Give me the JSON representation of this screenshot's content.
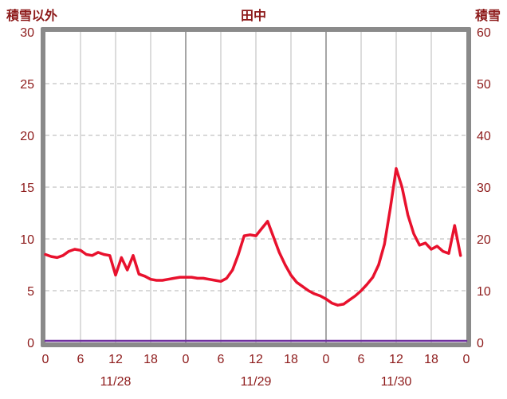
{
  "chart_data": {
    "type": "line",
    "title": "田中",
    "left_axis": {
      "label": "積雪以外",
      "min": 0,
      "max": 30,
      "ticks": [
        0,
        5,
        10,
        15,
        20,
        25,
        30
      ]
    },
    "right_axis": {
      "label": "積雪",
      "min": 0,
      "max": 60,
      "ticks": [
        0,
        10,
        20,
        30,
        40,
        50,
        60
      ]
    },
    "x_axis": {
      "unit": "hour",
      "hours_total": 72,
      "tick_step": 6,
      "tick_labels": [
        "0",
        "6",
        "12",
        "18",
        "0",
        "6",
        "12",
        "18",
        "0",
        "6",
        "12",
        "18",
        "0"
      ],
      "date_labels": [
        "11/28",
        "11/29",
        "11/30"
      ],
      "date_center_hours": [
        12,
        36,
        60
      ]
    },
    "series": [
      {
        "name": "積雪",
        "axis": "right",
        "color": "#7030a0",
        "width": 2.5,
        "values": [
          0,
          0,
          0,
          0,
          0,
          0,
          0,
          0,
          0,
          0,
          0,
          0,
          0,
          0,
          0,
          0,
          0,
          0,
          0,
          0,
          0,
          0,
          0,
          0,
          0,
          0,
          0,
          0,
          0,
          0,
          0,
          0,
          0,
          0,
          0,
          0,
          0,
          0,
          0,
          0,
          0,
          0,
          0,
          0,
          0,
          0,
          0,
          0,
          0,
          0,
          0,
          0,
          0,
          0,
          0,
          0,
          0,
          0,
          0,
          0,
          0,
          0,
          0,
          0,
          0,
          0,
          0,
          0,
          0,
          0,
          0,
          0
        ]
      },
      {
        "name": "積雪以外",
        "axis": "left",
        "color": "#e8112d",
        "width": 3.5,
        "values": [
          8.5,
          8.3,
          8.2,
          8.4,
          8.8,
          9.0,
          8.9,
          8.5,
          8.4,
          8.7,
          8.5,
          8.4,
          6.5,
          8.2,
          7.0,
          8.4,
          6.6,
          6.4,
          6.1,
          6.0,
          6.0,
          6.1,
          6.2,
          6.3,
          6.3,
          6.3,
          6.2,
          6.2,
          6.1,
          6.0,
          5.9,
          6.2,
          7.0,
          8.5,
          10.3,
          10.4,
          10.3,
          11.0,
          11.7,
          10.2,
          8.7,
          7.5,
          6.5,
          5.8,
          5.4,
          5.0,
          4.7,
          4.5,
          4.2,
          3.8,
          3.6,
          3.7,
          4.1,
          4.5,
          5.0,
          5.6,
          6.3,
          7.5,
          9.5,
          13.0,
          16.8,
          15.0,
          12.3,
          10.5,
          9.4,
          9.6,
          9.0,
          9.3,
          8.8,
          8.6,
          11.3,
          8.4
        ]
      }
    ],
    "grid": {
      "horizontal": "dashed",
      "vertical_minor": "solid",
      "vertical_major": "solid"
    },
    "colors": {
      "axis_text": "#8d1a1a",
      "border": "#8a8a8a",
      "grid_major": "#8f8f8f",
      "grid_minor": "#b8b8b8",
      "grid_dashed": "#b3b3b3",
      "plot_bg": "#ffffff"
    }
  }
}
